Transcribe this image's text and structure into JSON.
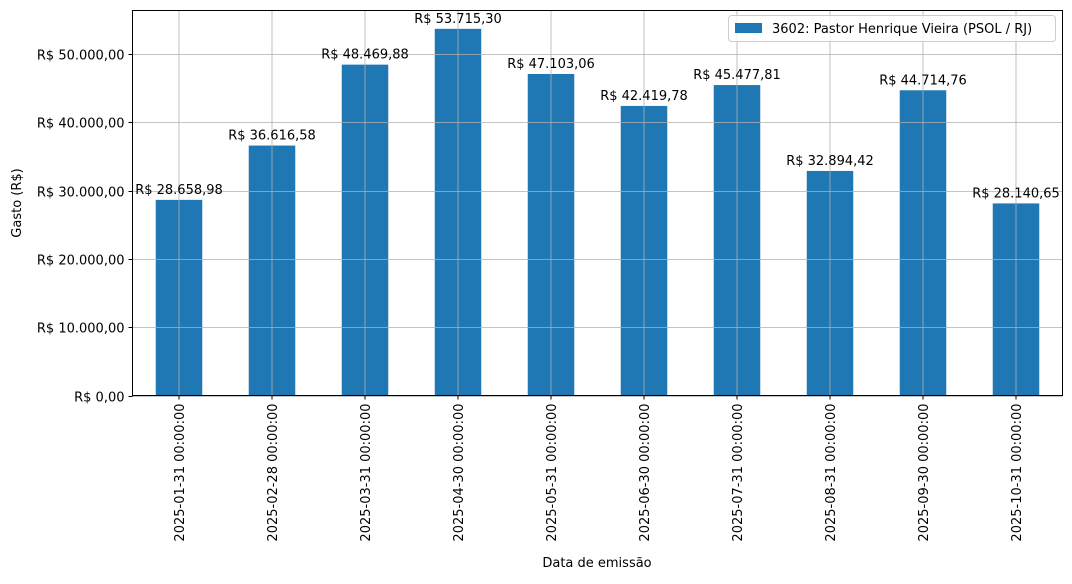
{
  "chart_data": {
    "type": "bar",
    "title": "",
    "xlabel": "Data de emissão",
    "ylabel": "Gasto (R$)",
    "ylim": [
      0,
      56401
    ],
    "yticks": [
      0,
      10000,
      20000,
      30000,
      40000,
      50000
    ],
    "ytick_labels": [
      "R$ 0,00",
      "R$ 10.000,00",
      "R$ 20.000,00",
      "R$ 30.000,00",
      "R$ 40.000,00",
      "R$ 50.000,00"
    ],
    "grid": true,
    "legend_placement": "top-right",
    "categories": [
      "2025-01-31 00:00:00",
      "2025-02-28 00:00:00",
      "2025-03-31 00:00:00",
      "2025-04-30 00:00:00",
      "2025-05-31 00:00:00",
      "2025-06-30 00:00:00",
      "2025-07-31 00:00:00",
      "2025-08-31 00:00:00",
      "2025-09-30 00:00:00",
      "2025-10-31 00:00:00"
    ],
    "series": [
      {
        "name": "3602: Pastor Henrique Vieira (PSOL / RJ)",
        "color": "#1f77b4",
        "values": [
          28658.98,
          36616.58,
          48469.88,
          53715.3,
          47103.06,
          42419.78,
          45477.81,
          32894.42,
          44714.76,
          28140.65
        ],
        "data_labels": [
          "R$ 28.658,98",
          "R$ 36.616,58",
          "R$ 48.469,88",
          "R$ 53.715,30",
          "R$ 47.103,06",
          "R$ 42.419,78",
          "R$ 45.477,81",
          "R$ 32.894,42",
          "R$ 44.714,76",
          "R$ 28.140,65"
        ]
      }
    ]
  }
}
